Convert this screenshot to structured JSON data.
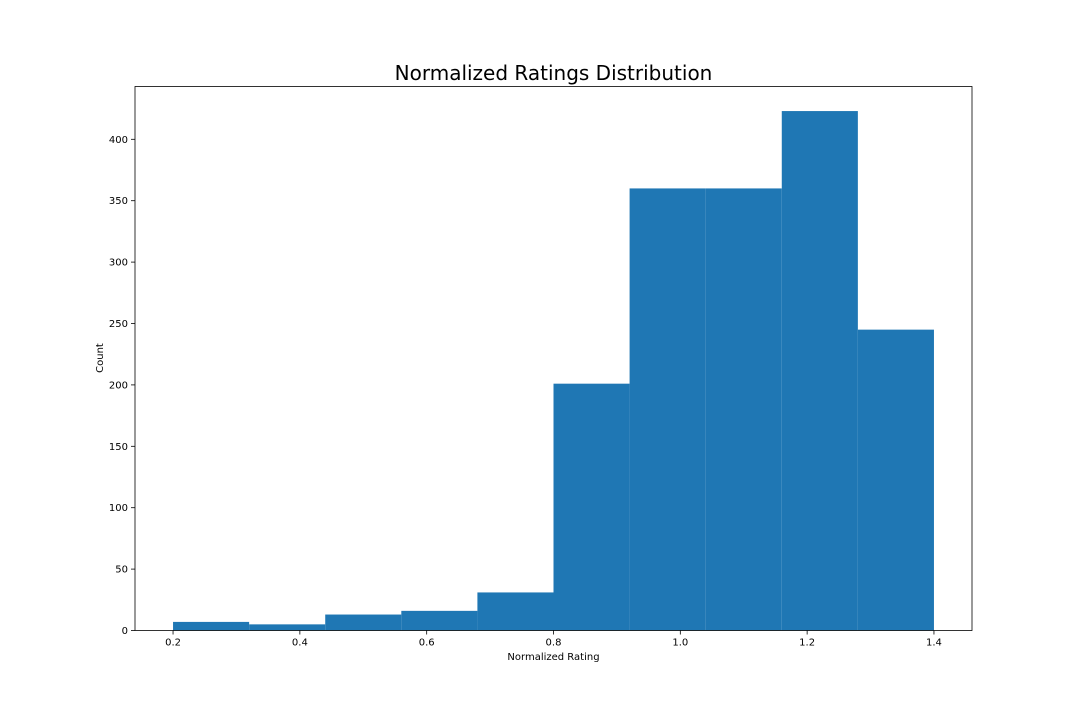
{
  "chart_data": {
    "type": "bar",
    "title": "Normalized Ratings Distribution",
    "xlabel": "Normalized Rating",
    "ylabel": "Count",
    "xlim": [
      0.14,
      1.46
    ],
    "ylim": [
      0,
      443
    ],
    "x_ticks": [
      "0.2",
      "0.4",
      "0.6",
      "0.8",
      "1.0",
      "1.2",
      "1.4"
    ],
    "y_ticks": [
      "0",
      "50",
      "100",
      "150",
      "200",
      "250",
      "300",
      "350",
      "400"
    ],
    "bins": [
      {
        "x0": 0.2,
        "x1": 0.32,
        "value": 7
      },
      {
        "x0": 0.32,
        "x1": 0.44,
        "value": 5
      },
      {
        "x0": 0.44,
        "x1": 0.56,
        "value": 13
      },
      {
        "x0": 0.56,
        "x1": 0.68,
        "value": 16
      },
      {
        "x0": 0.68,
        "x1": 0.8,
        "value": 31
      },
      {
        "x0": 0.8,
        "x1": 0.92,
        "value": 201
      },
      {
        "x0": 0.92,
        "x1": 1.04,
        "value": 360
      },
      {
        "x0": 1.04,
        "x1": 1.16,
        "value": 360
      },
      {
        "x0": 1.16,
        "x1": 1.28,
        "value": 423
      },
      {
        "x0": 1.28,
        "x1": 1.4,
        "value": 245
      }
    ],
    "bar_color": "#1f77b4",
    "grid": false,
    "legend": "none"
  }
}
